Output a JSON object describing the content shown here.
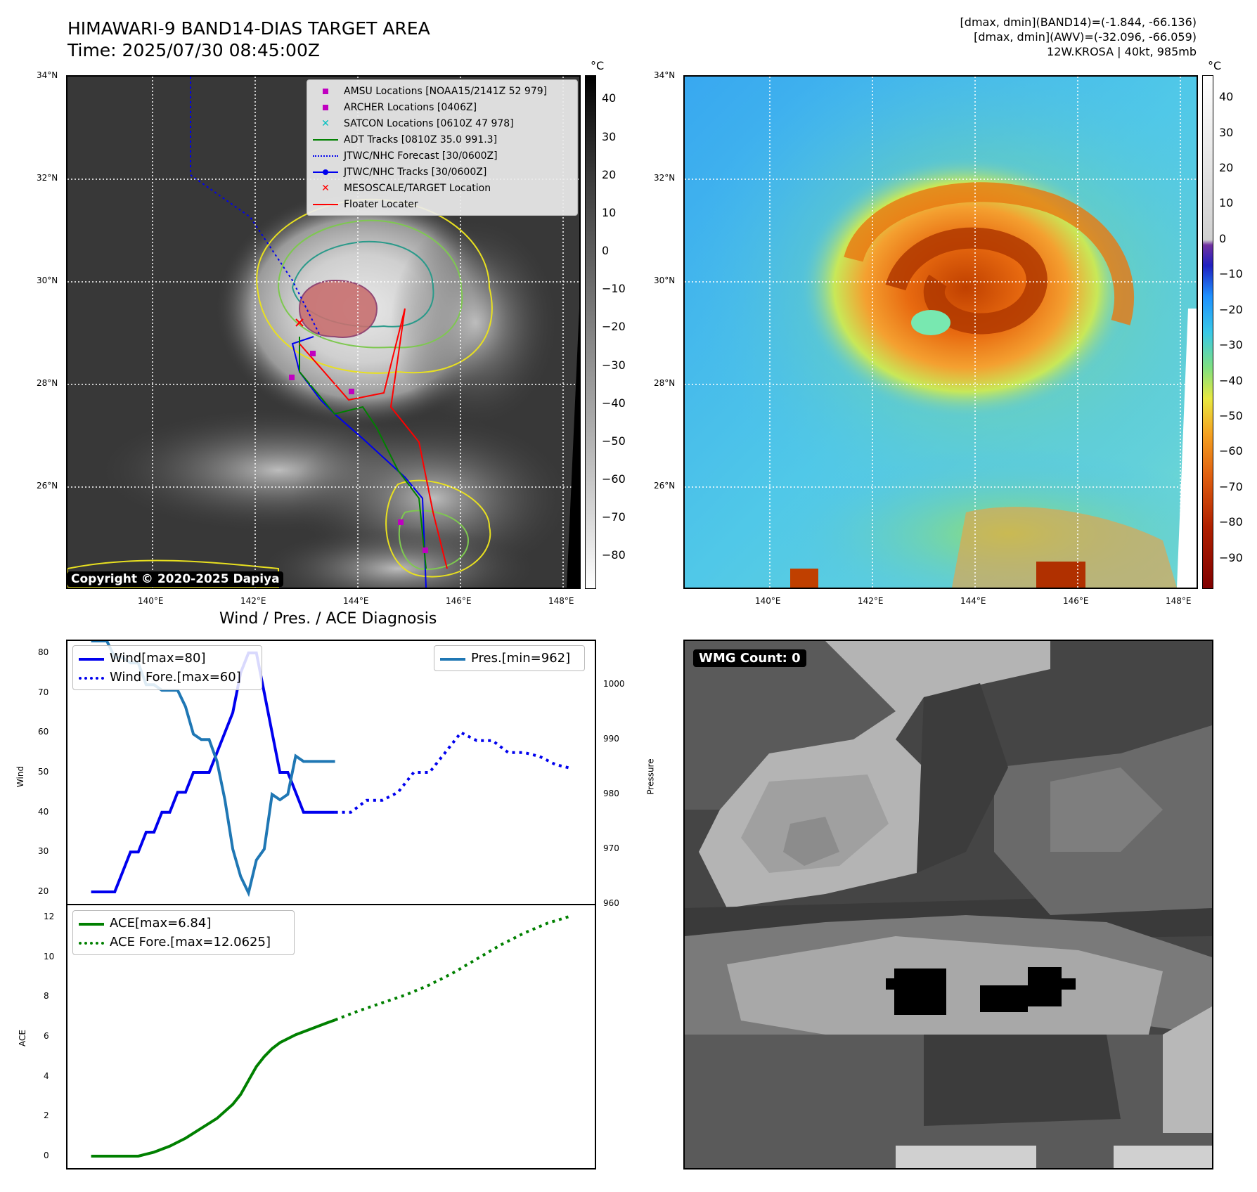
{
  "header": {
    "title_line1": "HIMAWARI-9 BAND14-DIAS TARGET AREA",
    "title_line2": "Time: 2025/07/30 08:45:00Z",
    "info_line1": "[dmax, dmin](BAND14)=(-1.844, -66.136)",
    "info_line2": "[dmax, dmin](AWV)=(-32.096, -66.059)",
    "info_line3": "12W.KROSA | 40kt, 985mb"
  },
  "map_left": {
    "lat_labels": [
      "34°N",
      "32°N",
      "30°N",
      "28°N",
      "26°N"
    ],
    "lon_labels": [
      "140°E",
      "142°E",
      "144°E",
      "146°E",
      "148°E"
    ],
    "copyright": "Copyright © 2020-2025 Dapiya",
    "colorbar_unit": "°C",
    "colorbar_ticks": [
      "40",
      "30",
      "20",
      "10",
      "0",
      "−10",
      "−20",
      "−30",
      "−40",
      "−50",
      "−60",
      "−70",
      "−80"
    ],
    "legend": [
      {
        "label": "AMSU Locations [NOAA15/2141Z 52 979]",
        "color": "#c000c0",
        "marker": "square"
      },
      {
        "label": "ARCHER Locations [0406Z]",
        "color": "#c000c0",
        "marker": "square"
      },
      {
        "label": "SATCON Locations [0610Z 47 978]",
        "color": "#00c0c0",
        "marker": "x"
      },
      {
        "label": "ADT Tracks [0810Z 35.0 991.3]",
        "color": "#008000",
        "marker": "line"
      },
      {
        "label": "JTWC/NHC Forecast [30/0600Z]",
        "color": "#0000ff",
        "marker": "dotted"
      },
      {
        "label": "JTWC/NHC Tracks [30/0600Z]",
        "color": "#0000ff",
        "marker": "line-dot"
      },
      {
        "label": "MESOSCALE/TARGET Location",
        "color": "#ff0000",
        "marker": "x"
      },
      {
        "label": "Floater Locater",
        "color": "#ff0000",
        "marker": "line"
      }
    ]
  },
  "map_right": {
    "lat_labels": [
      "34°N",
      "32°N",
      "30°N",
      "28°N",
      "26°N"
    ],
    "lon_labels": [
      "140°E",
      "142°E",
      "144°E",
      "146°E",
      "148°E"
    ],
    "colorbar_unit": "°C",
    "colorbar_ticks": [
      "40",
      "30",
      "20",
      "10",
      "0",
      "−10",
      "−20",
      "−30",
      "−40",
      "−50",
      "−60",
      "−70",
      "−80",
      "−90"
    ]
  },
  "wmg": {
    "badge": "WMG Count: 0"
  },
  "chart_data": [
    {
      "type": "line",
      "title": "Wind / Pres. / ACE Diagnosis",
      "ylabel": "Wind",
      "ylabel_right": "Pressure",
      "ylim": [
        17,
        83
      ],
      "ylim_right": [
        960,
        1008
      ],
      "yticks": [
        20,
        30,
        40,
        50,
        60,
        70,
        80
      ],
      "yticks_right": [
        960,
        970,
        980,
        990,
        1000
      ],
      "legend_left": [
        "Wind[max=80]",
        "Wind Fore.[max=60]"
      ],
      "legend_right": [
        "Pres.[min=962]"
      ],
      "series": [
        {
          "name": "Wind[max=80]",
          "color": "#0000ee",
          "style": "solid",
          "axis": "left",
          "x": [
            0,
            1,
            2,
            3,
            4,
            5,
            6,
            7,
            8,
            9,
            10,
            11,
            12,
            13,
            14,
            15,
            16,
            17,
            18,
            19,
            20,
            21,
            22,
            23,
            24,
            25,
            26,
            27,
            28,
            29,
            30,
            31
          ],
          "y": [
            20,
            20,
            20,
            20,
            25,
            30,
            30,
            35,
            35,
            40,
            40,
            45,
            45,
            50,
            50,
            50,
            55,
            60,
            65,
            75,
            80,
            80,
            70,
            60,
            50,
            50,
            45,
            40,
            40,
            40,
            40,
            40
          ]
        },
        {
          "name": "Wind Fore.[max=60]",
          "color": "#0000ee",
          "style": "dotted",
          "axis": "left",
          "x": [
            31,
            33,
            35,
            37,
            39,
            41,
            43,
            45,
            47,
            49,
            51,
            53,
            55,
            57,
            59,
            61
          ],
          "y": [
            40,
            40,
            43,
            43,
            45,
            50,
            50,
            55,
            60,
            58,
            58,
            55,
            55,
            54,
            52,
            51
          ]
        },
        {
          "name": "Pres.[min=962]",
          "color": "#1f77b4",
          "style": "solid",
          "axis": "right",
          "x": [
            0,
            1,
            2,
            3,
            4,
            5,
            6,
            7,
            8,
            9,
            10,
            11,
            12,
            13,
            14,
            15,
            16,
            17,
            18,
            19,
            20,
            21,
            22,
            23,
            24,
            25,
            26,
            27,
            28,
            29,
            30,
            31
          ],
          "y": [
            1008,
            1008,
            1008,
            1005,
            1005,
            1004,
            1004,
            1000,
            1000,
            999,
            999,
            999,
            996,
            991,
            990,
            990,
            986,
            979,
            970,
            965,
            962,
            968,
            970,
            980,
            979,
            980,
            987,
            986,
            986,
            986,
            986,
            986
          ]
        }
      ]
    },
    {
      "type": "line",
      "ylabel": "ACE",
      "ylim": [
        -0.6,
        12.6
      ],
      "yticks": [
        0,
        2,
        4,
        6,
        8,
        10,
        12
      ],
      "legend": [
        "ACE[max=6.84]",
        "ACE Fore.[max=12.0625]"
      ],
      "series": [
        {
          "name": "ACE[max=6.84]",
          "color": "#008000",
          "style": "solid",
          "x": [
            0,
            2,
            4,
            6,
            8,
            10,
            12,
            14,
            16,
            18,
            19,
            20,
            21,
            22,
            23,
            24,
            26,
            28,
            30,
            31
          ],
          "y": [
            0,
            0,
            0,
            0,
            0.2,
            0.5,
            0.9,
            1.4,
            1.9,
            2.6,
            3.1,
            3.8,
            4.5,
            5.0,
            5.4,
            5.7,
            6.1,
            6.4,
            6.7,
            6.84
          ]
        },
        {
          "name": "ACE Fore.[max=12.0625]",
          "color": "#008000",
          "style": "dotted",
          "x": [
            31,
            34,
            37,
            40,
            43,
            46,
            49,
            52,
            55,
            58,
            61
          ],
          "y": [
            6.84,
            7.3,
            7.7,
            8.1,
            8.6,
            9.2,
            9.9,
            10.6,
            11.2,
            11.7,
            12.0625
          ]
        }
      ]
    }
  ]
}
